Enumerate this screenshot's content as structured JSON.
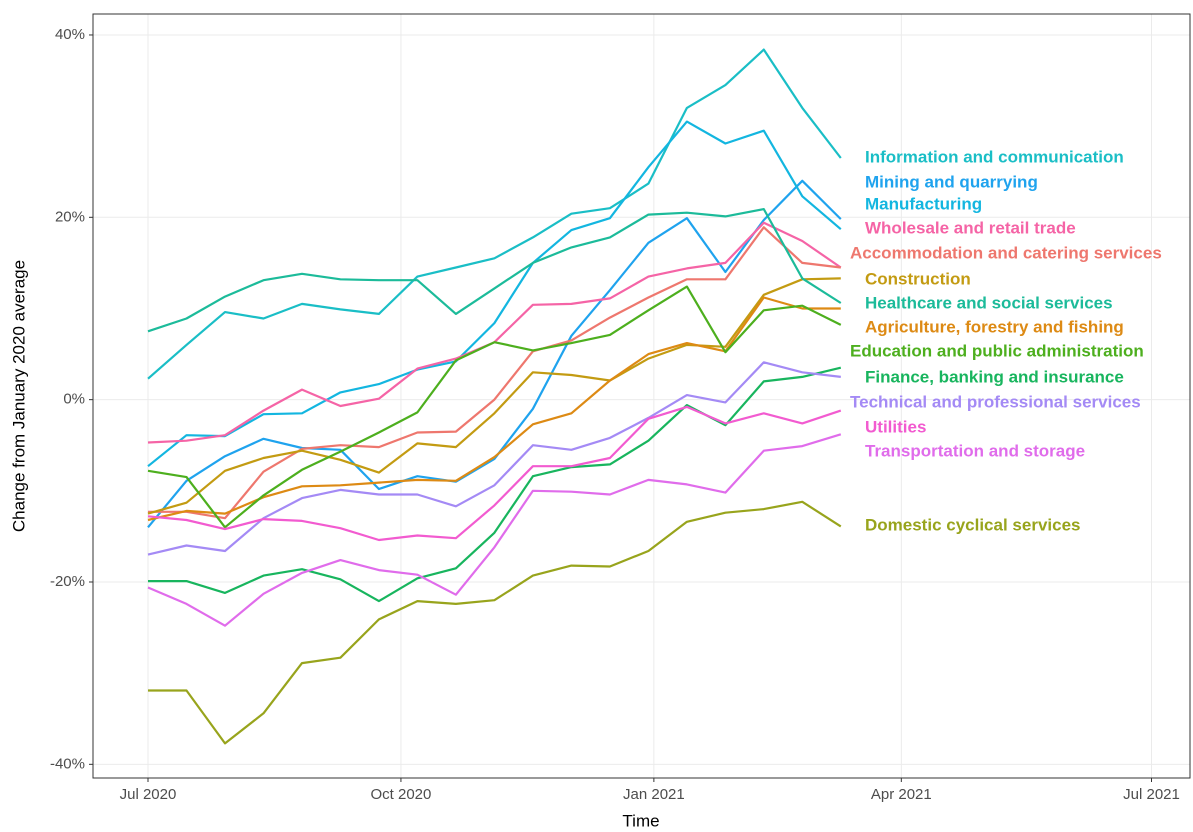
{
  "chart_data": {
    "type": "line",
    "x_label": "Time",
    "y_label": "Change from January 2020 average",
    "x": [
      "2020-07-01",
      "2020-07-15",
      "2020-07-29",
      "2020-08-12",
      "2020-08-26",
      "2020-09-09",
      "2020-09-23",
      "2020-10-07",
      "2020-10-21",
      "2020-11-04",
      "2020-11-18",
      "2020-12-02",
      "2020-12-16",
      "2020-12-30",
      "2021-01-13",
      "2021-01-27",
      "2021-02-10",
      "2021-02-24",
      "2021-03-10"
    ],
    "xlim": [
      "2020-06-11",
      "2021-07-15"
    ],
    "xticks": [
      {
        "value": "2020-07-01",
        "label": "Jul 2020"
      },
      {
        "value": "2020-10-01",
        "label": "Oct 2020"
      },
      {
        "value": "2021-01-01",
        "label": "Jan 2021"
      },
      {
        "value": "2021-04-01",
        "label": "Apr 2021"
      },
      {
        "value": "2021-07-01",
        "label": "Jul 2021"
      }
    ],
    "ylim": [
      -41.5,
      42.3
    ],
    "yticks": [
      {
        "value": -40,
        "label": "-40%"
      },
      {
        "value": -20,
        "label": "-20%"
      },
      {
        "value": 0,
        "label": "0%"
      },
      {
        "value": 20,
        "label": "20%"
      },
      {
        "value": 40,
        "label": "40%"
      }
    ],
    "grid": true,
    "series": [
      {
        "name": "Information and communication",
        "color": "#1ABEC6",
        "values": [
          2.3,
          6,
          9.6,
          8.9,
          10.5,
          9.9,
          9.4,
          13.5,
          14.5,
          15.5,
          17.8,
          20.4,
          21,
          23.7,
          32,
          34.5,
          38.4,
          32,
          26.5
        ]
      },
      {
        "name": "Mining and quarrying",
        "color": "#1FA3EE",
        "values": [
          -14,
          -8.9,
          -6.2,
          -4.3,
          -5.3,
          -5.5,
          -9.8,
          -8.4,
          -9,
          -6.5,
          -1,
          7,
          12,
          17.2,
          19.9,
          14,
          19.7,
          24,
          19.8
        ]
      },
      {
        "name": "Manufacturing",
        "color": "#13B6E0",
        "values": [
          -7.3,
          -3.9,
          -4,
          -1.6,
          -1.5,
          0.8,
          1.7,
          3.3,
          4.2,
          8.4,
          15,
          18.6,
          19.9,
          25.5,
          30.5,
          28.1,
          29.5,
          22.3,
          18.7
        ]
      },
      {
        "name": "Wholesale and retail trade",
        "color": "#F564A6",
        "values": [
          -4.7,
          -4.5,
          -3.9,
          -1.2,
          1.1,
          -0.7,
          0.1,
          3.4,
          4.5,
          6.3,
          10.4,
          10.5,
          11.1,
          13.5,
          14.4,
          15,
          19.4,
          17.4,
          14.5
        ]
      },
      {
        "name": "Accommodation and catering services",
        "color": "#EE776E",
        "values": [
          -12.3,
          -12.3,
          -13,
          -7.9,
          -5.4,
          -5,
          -5.2,
          -3.6,
          -3.5,
          0,
          5.3,
          6.5,
          9,
          11.2,
          13.2,
          13.2,
          18.9,
          15,
          14.5
        ]
      },
      {
        "name": "Construction",
        "color": "#C39B12",
        "values": [
          -12.5,
          -11.3,
          -7.8,
          -6.4,
          -5.6,
          -6.6,
          -8,
          -4.8,
          -5.2,
          -1.5,
          3,
          2.7,
          2.1,
          4.5,
          6,
          5.8,
          11.5,
          13.2,
          13.3
        ]
      },
      {
        "name": "Healthcare and social services",
        "color": "#1CBB9A",
        "values": [
          7.5,
          8.9,
          11.3,
          13.1,
          13.8,
          13.2,
          13.1,
          13.1,
          9.4,
          12.2,
          15,
          16.7,
          17.8,
          20.3,
          20.5,
          20.1,
          20.9,
          13.3,
          10.6
        ]
      },
      {
        "name": "Agriculture, forestry and fishing",
        "color": "#DD8A14",
        "values": [
          -13.2,
          -12.2,
          -12.5,
          -10.7,
          -9.5,
          -9.4,
          -9.1,
          -8.8,
          -8.9,
          -6.3,
          -2.7,
          -1.5,
          2.1,
          5,
          6.2,
          5.3,
          11.2,
          10,
          10
        ]
      },
      {
        "name": "Education and public administration",
        "color": "#4DAF1E",
        "values": [
          -7.8,
          -8.5,
          -14,
          -10.5,
          -7.7,
          -5.7,
          -3.6,
          -1.4,
          4.3,
          6.3,
          5.4,
          6.2,
          7.1,
          9.8,
          12.4,
          5.2,
          9.8,
          10.3,
          8.2
        ]
      },
      {
        "name": "Finance, banking and insurance",
        "color": "#18B55E",
        "values": [
          -19.9,
          -19.9,
          -21.2,
          -19.3,
          -18.6,
          -19.7,
          -22.1,
          -19.6,
          -18.5,
          -14.6,
          -8.4,
          -7.4,
          -7.1,
          -4.5,
          -0.6,
          -2.8,
          2,
          2.5,
          3.5
        ]
      },
      {
        "name": "Technical and professional services",
        "color": "#A48AF5",
        "values": [
          -17,
          -16,
          -16.6,
          -13,
          -10.8,
          -9.9,
          -10.4,
          -10.4,
          -11.7,
          -9.4,
          -5,
          -5.5,
          -4.2,
          -2,
          0.5,
          -0.3,
          4.1,
          3,
          2.5
        ]
      },
      {
        "name": "Utilities",
        "color": "#F25BD0",
        "values": [
          -12.8,
          -13.2,
          -14.2,
          -13.1,
          -13.3,
          -14.1,
          -15.4,
          -14.9,
          -15.2,
          -11.6,
          -7.3,
          -7.3,
          -6.4,
          -2.1,
          -0.8,
          -2.6,
          -1.5,
          -2.6,
          -1.2
        ]
      },
      {
        "name": "Transportation and storage",
        "color": "#E06CEB",
        "values": [
          -20.6,
          -22.4,
          -24.8,
          -21.3,
          -19,
          -17.6,
          -18.7,
          -19.2,
          -21.4,
          -16.2,
          -10,
          -10.1,
          -10.4,
          -8.8,
          -9.3,
          -10.2,
          -5.6,
          -5.1,
          -3.8
        ]
      },
      {
        "name": "Domestic cyclical services",
        "color": "#98A41C",
        "values": [
          -31.9,
          -31.9,
          -37.7,
          -34.4,
          -28.9,
          -28.3,
          -24.1,
          -22.1,
          -22.4,
          -22,
          -19.3,
          -18.2,
          -18.3,
          -16.6,
          -13.4,
          -12.4,
          -12,
          -11.2,
          -13.9
        ]
      }
    ]
  }
}
